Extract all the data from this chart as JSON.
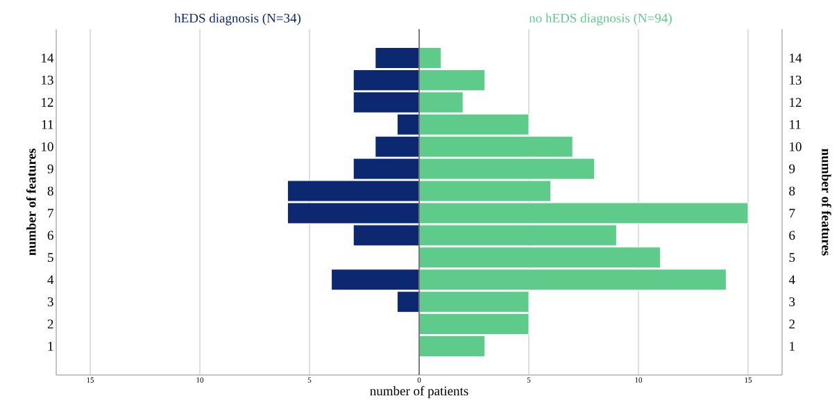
{
  "chart_data": {
    "type": "bar",
    "orientation": "horizontal",
    "stacked": true,
    "categories": [
      "14",
      "13",
      "12",
      "11",
      "10",
      "9",
      "8",
      "7",
      "6",
      "5",
      "4",
      "3",
      "2",
      "1"
    ],
    "series": [
      {
        "name": "hEDS diagnosis (N=34)",
        "color": "#0c2870",
        "values": [
          -2,
          -3,
          -3,
          -1,
          -2,
          -3,
          -6,
          -6,
          -3,
          0,
          -4,
          -1,
          0,
          0
        ]
      },
      {
        "name": "no hEDS diagnosis (N=94)",
        "color": "#5ecb8b",
        "values": [
          1,
          3,
          2,
          5,
          7,
          8,
          6,
          15,
          9,
          11,
          14,
          5,
          5,
          3
        ]
      }
    ],
    "xlim": [
      -16.55,
      16.55
    ],
    "xticks": [
      {
        "value": -15,
        "label": "15"
      },
      {
        "value": -10,
        "label": "10"
      },
      {
        "value": -5,
        "label": "5"
      },
      0,
      5,
      10,
      15
    ],
    "xlabel": "number of patients",
    "ylabel": "number of features",
    "y2label": "number of features",
    "grid": "x"
  }
}
